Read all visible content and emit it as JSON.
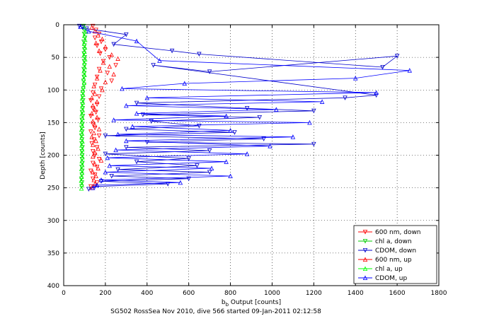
{
  "chart_data": {
    "type": "scatter",
    "title": "",
    "xlabel_main": "b",
    "xlabel_sub": "b",
    "xlabel_rest": " Output [counts]",
    "ylabel": "Depth [counts]",
    "caption": "SG502 RossSea Nov 2010, dive 566 started 09-Jan-2011 02:12:58",
    "xlim": [
      0,
      1800
    ],
    "ylim": [
      0,
      400
    ],
    "y_reversed": true,
    "grid": true,
    "legend_position": "bottom-right",
    "xticks": [
      "0",
      "200",
      "400",
      "600",
      "800",
      "1000",
      "1200",
      "1400",
      "1600",
      "1800"
    ],
    "yticks": [
      "0",
      "50",
      "100",
      "150",
      "200",
      "250",
      "300",
      "350",
      "400"
    ],
    "series": [
      {
        "name": "600 nm, down",
        "color": "#ff0000",
        "marker": "triangle-down",
        "line": false,
        "points": [
          [
            140,
            2
          ],
          [
            155,
            8
          ],
          [
            170,
            14
          ],
          [
            150,
            20
          ],
          [
            180,
            26
          ],
          [
            160,
            32
          ],
          [
            200,
            38
          ],
          [
            175,
            44
          ],
          [
            220,
            50
          ],
          [
            190,
            56
          ],
          [
            250,
            62
          ],
          [
            170,
            68
          ],
          [
            210,
            74
          ],
          [
            160,
            80
          ],
          [
            230,
            86
          ],
          [
            150,
            92
          ],
          [
            180,
            98
          ],
          [
            140,
            104
          ],
          [
            170,
            110
          ],
          [
            130,
            116
          ],
          [
            160,
            122
          ],
          [
            140,
            128
          ],
          [
            155,
            134
          ],
          [
            130,
            140
          ],
          [
            165,
            146
          ],
          [
            140,
            152
          ],
          [
            150,
            158
          ],
          [
            130,
            164
          ],
          [
            170,
            170
          ],
          [
            145,
            176
          ],
          [
            135,
            182
          ],
          [
            160,
            188
          ],
          [
            140,
            194
          ],
          [
            150,
            200
          ],
          [
            170,
            206
          ],
          [
            140,
            212
          ],
          [
            160,
            218
          ],
          [
            130,
            224
          ],
          [
            150,
            230
          ],
          [
            140,
            236
          ],
          [
            160,
            242
          ],
          [
            130,
            248
          ]
        ]
      },
      {
        "name": "chl a, down",
        "color": "#00cc00",
        "marker": "triangle-down",
        "line": false,
        "points": [
          [
            95,
            2
          ],
          [
            100,
            8
          ],
          [
            98,
            14
          ],
          [
            102,
            20
          ],
          [
            96,
            26
          ],
          [
            100,
            32
          ],
          [
            99,
            38
          ],
          [
            97,
            44
          ],
          [
            101,
            50
          ],
          [
            98,
            56
          ],
          [
            100,
            62
          ],
          [
            96,
            68
          ],
          [
            99,
            74
          ],
          [
            97,
            80
          ],
          [
            95,
            86
          ],
          [
            98,
            92
          ],
          [
            94,
            98
          ],
          [
            92,
            104
          ],
          [
            90,
            110
          ],
          [
            93,
            116
          ],
          [
            89,
            122
          ],
          [
            91,
            128
          ],
          [
            88,
            134
          ],
          [
            92,
            140
          ],
          [
            87,
            146
          ],
          [
            90,
            152
          ],
          [
            86,
            158
          ],
          [
            89,
            164
          ],
          [
            85,
            170
          ],
          [
            88,
            176
          ],
          [
            86,
            182
          ],
          [
            90,
            188
          ],
          [
            87,
            194
          ],
          [
            89,
            200
          ],
          [
            88,
            206
          ],
          [
            90,
            212
          ],
          [
            86,
            218
          ],
          [
            89,
            224
          ],
          [
            87,
            230
          ],
          [
            85,
            236
          ],
          [
            88,
            242
          ],
          [
            86,
            248
          ]
        ]
      },
      {
        "name": "CDOM, down",
        "color": "#0000cc",
        "marker": "triangle-down",
        "line": true,
        "points": [
          [
            75,
            2
          ],
          [
            90,
            4
          ],
          [
            110,
            6
          ],
          [
            300,
            15
          ],
          [
            240,
            30
          ],
          [
            520,
            40
          ],
          [
            650,
            45
          ],
          [
            1530,
            65
          ],
          [
            1600,
            48
          ],
          [
            700,
            72
          ],
          [
            430,
            62
          ],
          [
            1500,
            108
          ],
          [
            1350,
            112
          ],
          [
            350,
            120
          ],
          [
            880,
            128
          ],
          [
            1200,
            132
          ],
          [
            380,
            138
          ],
          [
            940,
            142
          ],
          [
            420,
            148
          ],
          [
            650,
            155
          ],
          [
            300,
            160
          ],
          [
            820,
            165
          ],
          [
            200,
            170
          ],
          [
            960,
            175
          ],
          [
            400,
            180
          ],
          [
            1200,
            183
          ],
          [
            300,
            188
          ],
          [
            700,
            193
          ],
          [
            200,
            198
          ],
          [
            600,
            205
          ],
          [
            350,
            210
          ],
          [
            640,
            216
          ],
          [
            260,
            222
          ],
          [
            700,
            226
          ],
          [
            230,
            232
          ],
          [
            600,
            236
          ],
          [
            180,
            240
          ],
          [
            500,
            244
          ],
          [
            150,
            248
          ],
          [
            120,
            252
          ]
        ]
      },
      {
        "name": "600 nm, up",
        "color": "#ff0000",
        "marker": "triangle-up",
        "line": false,
        "points": [
          [
            135,
            4
          ],
          [
            150,
            10
          ],
          [
            165,
            16
          ],
          [
            185,
            22
          ],
          [
            155,
            28
          ],
          [
            200,
            34
          ],
          [
            170,
            40
          ],
          [
            230,
            46
          ],
          [
            260,
            52
          ],
          [
            190,
            58
          ],
          [
            220,
            64
          ],
          [
            175,
            70
          ],
          [
            240,
            76
          ],
          [
            160,
            82
          ],
          [
            200,
            88
          ],
          [
            145,
            94
          ],
          [
            185,
            100
          ],
          [
            150,
            106
          ],
          [
            135,
            112
          ],
          [
            160,
            118
          ],
          [
            140,
            124
          ],
          [
            150,
            130
          ],
          [
            135,
            136
          ],
          [
            160,
            142
          ],
          [
            140,
            148
          ],
          [
            150,
            154
          ],
          [
            170,
            160
          ],
          [
            145,
            166
          ],
          [
            135,
            172
          ],
          [
            155,
            178
          ],
          [
            140,
            184
          ],
          [
            165,
            190
          ],
          [
            150,
            196
          ],
          [
            140,
            202
          ],
          [
            180,
            208
          ],
          [
            150,
            214
          ],
          [
            165,
            220
          ],
          [
            140,
            226
          ],
          [
            155,
            232
          ],
          [
            145,
            238
          ],
          [
            150,
            244
          ],
          [
            135,
            250
          ]
        ]
      },
      {
        "name": "chl a, up",
        "color": "#00ff00",
        "marker": "triangle-up",
        "line": false,
        "points": [
          [
            100,
            5
          ],
          [
            104,
            11
          ],
          [
            99,
            17
          ],
          [
            103,
            23
          ],
          [
            98,
            29
          ],
          [
            102,
            35
          ],
          [
            100,
            41
          ],
          [
            97,
            47
          ],
          [
            103,
            53
          ],
          [
            99,
            59
          ],
          [
            101,
            65
          ],
          [
            97,
            71
          ],
          [
            100,
            77
          ],
          [
            96,
            83
          ],
          [
            98,
            89
          ],
          [
            94,
            95
          ],
          [
            91,
            101
          ],
          [
            93,
            107
          ],
          [
            88,
            113
          ],
          [
            92,
            119
          ],
          [
            89,
            125
          ],
          [
            91,
            131
          ],
          [
            87,
            137
          ],
          [
            90,
            143
          ],
          [
            86,
            149
          ],
          [
            89,
            155
          ],
          [
            85,
            161
          ],
          [
            88,
            167
          ],
          [
            86,
            173
          ],
          [
            90,
            179
          ],
          [
            86,
            185
          ],
          [
            89,
            191
          ],
          [
            87,
            197
          ],
          [
            90,
            203
          ],
          [
            87,
            209
          ],
          [
            89,
            215
          ],
          [
            85,
            221
          ],
          [
            88,
            227
          ],
          [
            86,
            233
          ],
          [
            84,
            239
          ],
          [
            87,
            245
          ],
          [
            85,
            251
          ]
        ]
      },
      {
        "name": "CDOM, up",
        "color": "#0000ff",
        "marker": "triangle-up",
        "line": true,
        "points": [
          [
            80,
            3
          ],
          [
            120,
            10
          ],
          [
            350,
            25
          ],
          [
            460,
            55
          ],
          [
            1660,
            70
          ],
          [
            1400,
            82
          ],
          [
            580,
            90
          ],
          [
            280,
            98
          ],
          [
            1500,
            104
          ],
          [
            400,
            112
          ],
          [
            1240,
            118
          ],
          [
            300,
            124
          ],
          [
            1020,
            130
          ],
          [
            350,
            136
          ],
          [
            780,
            140
          ],
          [
            240,
            146
          ],
          [
            1180,
            150
          ],
          [
            330,
            156
          ],
          [
            800,
            162
          ],
          [
            260,
            168
          ],
          [
            1100,
            172
          ],
          [
            300,
            178
          ],
          [
            990,
            186
          ],
          [
            250,
            192
          ],
          [
            880,
            198
          ],
          [
            210,
            204
          ],
          [
            780,
            210
          ],
          [
            220,
            216
          ],
          [
            710,
            220
          ],
          [
            200,
            226
          ],
          [
            800,
            232
          ],
          [
            180,
            238
          ],
          [
            560,
            242
          ],
          [
            160,
            246
          ],
          [
            140,
            250
          ]
        ]
      }
    ]
  }
}
